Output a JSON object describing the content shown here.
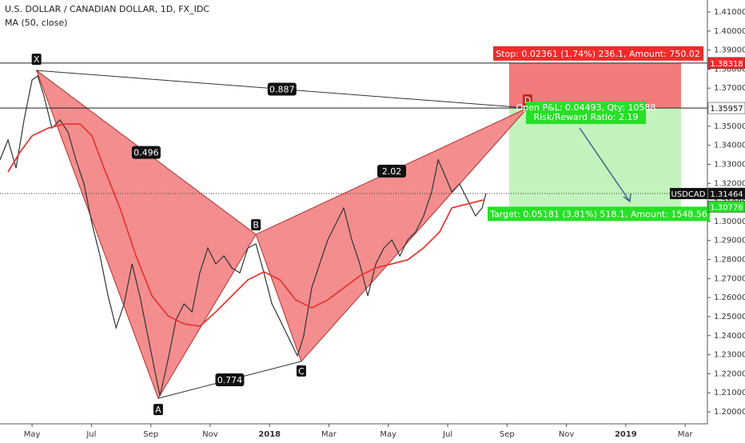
{
  "chart_data": {
    "type": "line",
    "title": "U.S. DOLLAR / CANADIAN DOLLAR, 1D, FX_IDC",
    "subtitle": "MA (50, close)",
    "xlim": [
      -1.08,
      22.75
    ],
    "ylim": [
      1.1937,
      1.4163
    ],
    "xticks": [
      {
        "value": 0,
        "label": "May"
      },
      {
        "value": 2,
        "label": "Jul"
      },
      {
        "value": 4,
        "label": "Sep"
      },
      {
        "value": 6,
        "label": "Nov"
      },
      {
        "value": 8,
        "label": "2018"
      },
      {
        "value": 10,
        "label": "Mar"
      },
      {
        "value": 12,
        "label": "May"
      },
      {
        "value": 14,
        "label": "Jul"
      },
      {
        "value": 16,
        "label": "Sep"
      },
      {
        "value": 18,
        "label": "Nov"
      },
      {
        "value": 20,
        "label": "2019"
      },
      {
        "value": 22,
        "label": "Mar"
      }
    ],
    "yticks": [
      {
        "value": 1.2,
        "label": "1.20000"
      },
      {
        "value": 1.21,
        "label": "1.21000"
      },
      {
        "value": 1.22,
        "label": "1.22000"
      },
      {
        "value": 1.23,
        "label": "1.23000"
      },
      {
        "value": 1.24,
        "label": "1.24000"
      },
      {
        "value": 1.25,
        "label": "1.25000"
      },
      {
        "value": 1.26,
        "label": "1.26000"
      },
      {
        "value": 1.27,
        "label": "1.27000"
      },
      {
        "value": 1.28,
        "label": "1.28000"
      },
      {
        "value": 1.29,
        "label": "1.29000"
      },
      {
        "value": 1.3,
        "label": "1.30000"
      },
      {
        "value": 1.31,
        "label": "1.31000"
      },
      {
        "value": 1.32,
        "label": "1.32000"
      },
      {
        "value": 1.33,
        "label": "1.33000"
      },
      {
        "value": 1.34,
        "label": "1.34000"
      },
      {
        "value": 1.35,
        "label": "1.35000"
      },
      {
        "value": 1.36,
        "label": "1.36000"
      },
      {
        "value": 1.37,
        "label": "1.37000"
      },
      {
        "value": 1.38,
        "label": "1.38000"
      },
      {
        "value": 1.39,
        "label": "1.39000"
      },
      {
        "value": 1.4,
        "label": "1.40000"
      },
      {
        "value": 1.41,
        "label": "1.41000"
      }
    ],
    "series": [
      {
        "color": "#333333",
        "x": [
          -1.08,
          -0.81,
          -0.54,
          -0.27,
          0,
          0.19,
          0.4,
          0.67,
          0.94,
          1.21,
          1.48,
          1.75,
          2.02,
          2.29,
          2.56,
          2.83,
          3.1,
          3.37,
          3.63,
          3.9,
          4.17,
          4.31,
          4.58,
          4.85,
          5.12,
          5.39,
          5.65,
          5.92,
          6.19,
          6.46,
          6.73,
          7,
          7.27,
          7.54,
          7.81,
          8.08,
          8.35,
          8.61,
          8.94,
          9.15,
          9.42,
          9.69,
          9.96,
          10.23,
          10.5,
          10.77,
          11.04,
          11.31,
          11.58,
          11.85,
          12.12,
          12.39,
          12.65,
          12.92,
          13.19,
          13.46,
          13.68,
          13.86,
          14.14,
          14.4,
          14.67,
          14.94,
          15.16,
          15.29
        ],
        "values": [
          1.3323,
          1.3428,
          1.328,
          1.3533,
          1.3743,
          1.3764,
          1.3659,
          1.349,
          1.3533,
          1.347,
          1.3323,
          1.3197,
          1.2987,
          1.2819,
          1.2609,
          1.2441,
          1.2567,
          1.2777,
          1.2609,
          1.2399,
          1.2189,
          1.2084,
          1.2273,
          1.2483,
          1.2567,
          1.2525,
          1.273,
          1.286,
          1.2777,
          1.2819,
          1.2756,
          1.273,
          1.286,
          1.2882,
          1.273,
          1.2567,
          1.2483,
          1.2399,
          1.2294,
          1.2399,
          1.2651,
          1.2777,
          1.2903,
          1.2987,
          1.3071,
          1.2903,
          1.2777,
          1.2609,
          1.2777,
          1.286,
          1.2903,
          1.2819,
          1.2903,
          1.2945,
          1.3029,
          1.3155,
          1.3323,
          1.326,
          1.3155,
          1.3197,
          1.3113,
          1.3029,
          1.3071,
          1.3147
        ]
      },
      {
        "color": "#e53935",
        "x": [
          -0.81,
          -0.4,
          0,
          0.54,
          1.08,
          1.62,
          2.02,
          2.42,
          2.96,
          3.5,
          4.04,
          4.58,
          5.12,
          5.65,
          6.19,
          6.73,
          7.27,
          7.81,
          8.35,
          8.88,
          9.42,
          9.96,
          10.5,
          11.04,
          11.58,
          12.12,
          12.65,
          13.19,
          13.73,
          14.14,
          14.67,
          15.21
        ],
        "values": [
          1.326,
          1.3365,
          1.3449,
          1.349,
          1.3512,
          1.3512,
          1.3449,
          1.3281,
          1.3071,
          1.2819,
          1.2609,
          1.2504,
          1.2462,
          1.2449,
          1.2525,
          1.2609,
          1.2693,
          1.2735,
          1.2693,
          1.2588,
          1.2546,
          1.2588,
          1.2651,
          1.2714,
          1.2756,
          1.2777,
          1.2798,
          1.2861,
          1.2945,
          1.3071,
          1.3092,
          1.3113
        ]
      }
    ],
    "pattern": {
      "color": "#f27a7a",
      "points": [
        {
          "name": "X",
          "x": 0.15,
          "y": 1.3793
        },
        {
          "name": "A",
          "x": 4.25,
          "y": 1.2071
        },
        {
          "name": "B",
          "x": 7.54,
          "y": 1.2932
        },
        {
          "name": "C",
          "x": 9.07,
          "y": 1.2265
        },
        {
          "name": "D",
          "x": 16.69,
          "y": 1.3596
        }
      ],
      "ratios": {
        "XD": 0.887,
        "XB": 0.496,
        "AC": 0.774,
        "BD": 2.02
      }
    },
    "position": {
      "start": 16.07,
      "end": 21.86,
      "entry": 1.35957,
      "stop": 1.38318,
      "target": 1.30776,
      "stop_color": "#f26b6b",
      "target_color": "#c3f3bc",
      "stop_text": "Stop: 0.02361 (1.74%) 236.1, Amount: 750.02",
      "pnl_text": "Open P&L: 0.04493, Qty: 10588",
      "rr_text": "Risk/Reward Ratio: 2.19",
      "target_text": "Target: 0.05181 (3.81%) 518.1, Amount: 1548.56"
    },
    "symbol": "USDCAD",
    "last": 1.31464
  }
}
